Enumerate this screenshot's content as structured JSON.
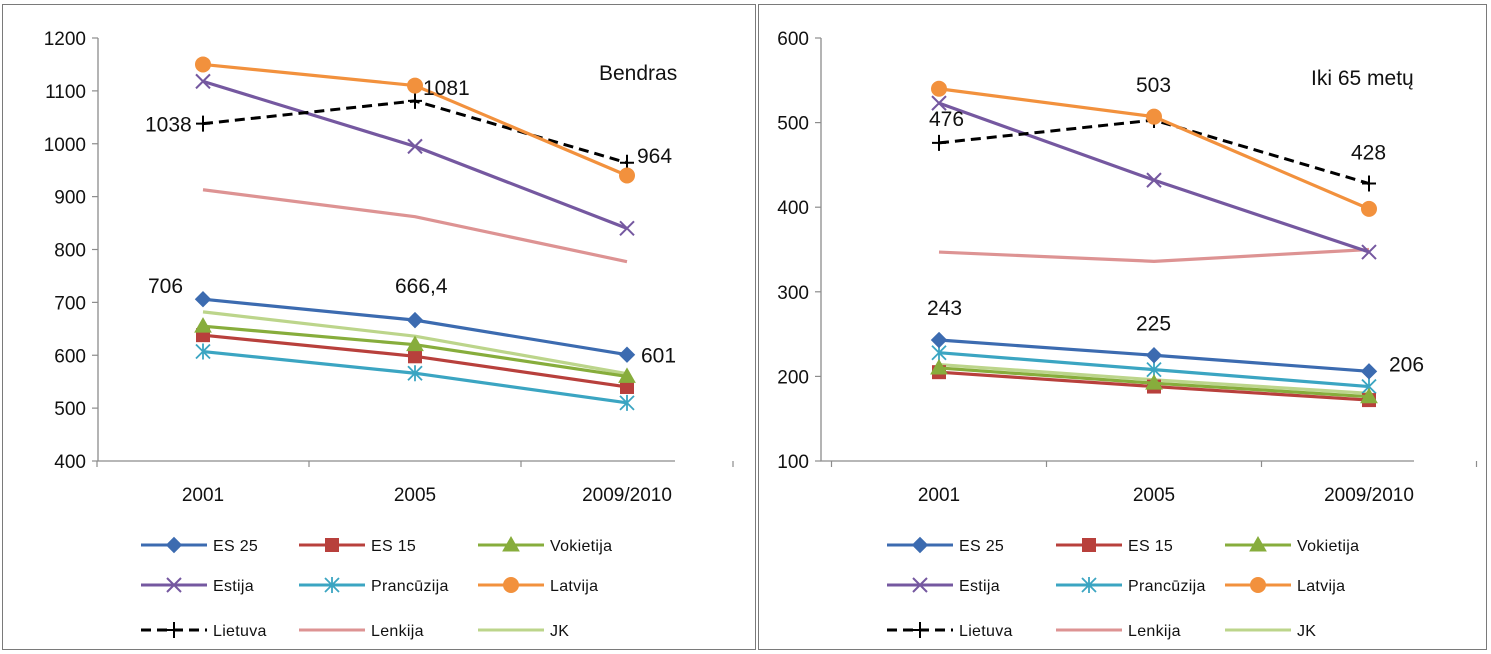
{
  "colors": {
    "ES 25": "#3c6bb0",
    "ES 15": "#b8403c",
    "Vokietija": "#87ad3c",
    "Estija": "#7558a0",
    "Prancūzija": "#3ba5c2",
    "Latvija": "#f2913d",
    "Lietuva": "#000000",
    "Lenkija": "#dd9393",
    "JK": "#bcd58b"
  },
  "chart_data": [
    {
      "type": "line",
      "categories": [
        "2001",
        "2005",
        "2009/2010"
      ],
      "ylim": [
        400,
        1200
      ],
      "yticks": [
        400,
        500,
        600,
        700,
        800,
        900,
        1000,
        1100,
        1200
      ],
      "annotation": "Bendras",
      "series": [
        {
          "name": "ES 25",
          "values": [
            706,
            666.4,
            601
          ],
          "marker": "diamond"
        },
        {
          "name": "ES 15",
          "values": [
            638,
            598,
            540
          ],
          "marker": "square"
        },
        {
          "name": "Vokietija",
          "values": [
            655,
            620,
            560
          ],
          "marker": "triangle"
        },
        {
          "name": "Estija",
          "values": [
            1118,
            995,
            840
          ],
          "marker": "x"
        },
        {
          "name": "Prancūzija",
          "values": [
            607,
            566,
            510
          ],
          "marker": "asterisk"
        },
        {
          "name": "Latvija",
          "values": [
            1150,
            1110,
            940
          ],
          "marker": "circle"
        },
        {
          "name": "Lietuva",
          "values": [
            1038,
            1081,
            964
          ],
          "marker": "plus",
          "dashed": true
        },
        {
          "name": "Lenkija",
          "values": [
            913,
            862,
            777
          ],
          "marker": "none"
        },
        {
          "name": "JK",
          "values": [
            682,
            636,
            565
          ],
          "marker": "none"
        }
      ],
      "data_labels": [
        {
          "series": "Lietuva",
          "index": 0,
          "text": "1038"
        },
        {
          "series": "Lietuva",
          "index": 1,
          "text": "1081"
        },
        {
          "series": "Lietuva",
          "index": 2,
          "text": "964"
        },
        {
          "series": "ES 25",
          "index": 0,
          "text": "706"
        },
        {
          "series": "ES 25",
          "index": 1,
          "text": "666,4"
        },
        {
          "series": "ES 25",
          "index": 2,
          "text": "601"
        }
      ],
      "legend_position": "bottom"
    },
    {
      "type": "line",
      "categories": [
        "2001",
        "2005",
        "2009/2010"
      ],
      "ylim": [
        100,
        600
      ],
      "yticks": [
        100,
        200,
        300,
        400,
        500,
        600
      ],
      "annotation": "Iki 65 metų",
      "series": [
        {
          "name": "ES 25",
          "values": [
            243,
            225,
            206
          ],
          "marker": "diamond"
        },
        {
          "name": "ES 15",
          "values": [
            205,
            188,
            172
          ],
          "marker": "square"
        },
        {
          "name": "Vokietija",
          "values": [
            210,
            192,
            176
          ],
          "marker": "triangle"
        },
        {
          "name": "Estija",
          "values": [
            523,
            432,
            347
          ],
          "marker": "x"
        },
        {
          "name": "Prancūzija",
          "values": [
            228,
            208,
            188
          ],
          "marker": "asterisk"
        },
        {
          "name": "Latvija",
          "values": [
            540,
            507,
            398
          ],
          "marker": "circle"
        },
        {
          "name": "Lietuva",
          "values": [
            476,
            503,
            428
          ],
          "marker": "plus",
          "dashed": true
        },
        {
          "name": "Lenkija",
          "values": [
            347,
            336,
            350
          ],
          "marker": "none"
        },
        {
          "name": "JK",
          "values": [
            214,
            196,
            180
          ],
          "marker": "none"
        }
      ],
      "data_labels": [
        {
          "series": "Lietuva",
          "index": 0,
          "text": "476"
        },
        {
          "series": "Lietuva",
          "index": 1,
          "text": "503"
        },
        {
          "series": "Lietuva",
          "index": 2,
          "text": "428"
        },
        {
          "series": "ES 25",
          "index": 0,
          "text": "243"
        },
        {
          "series": "ES 25",
          "index": 1,
          "text": "225"
        },
        {
          "series": "ES 25",
          "index": 2,
          "text": "206"
        }
      ],
      "legend_position": "bottom"
    }
  ]
}
